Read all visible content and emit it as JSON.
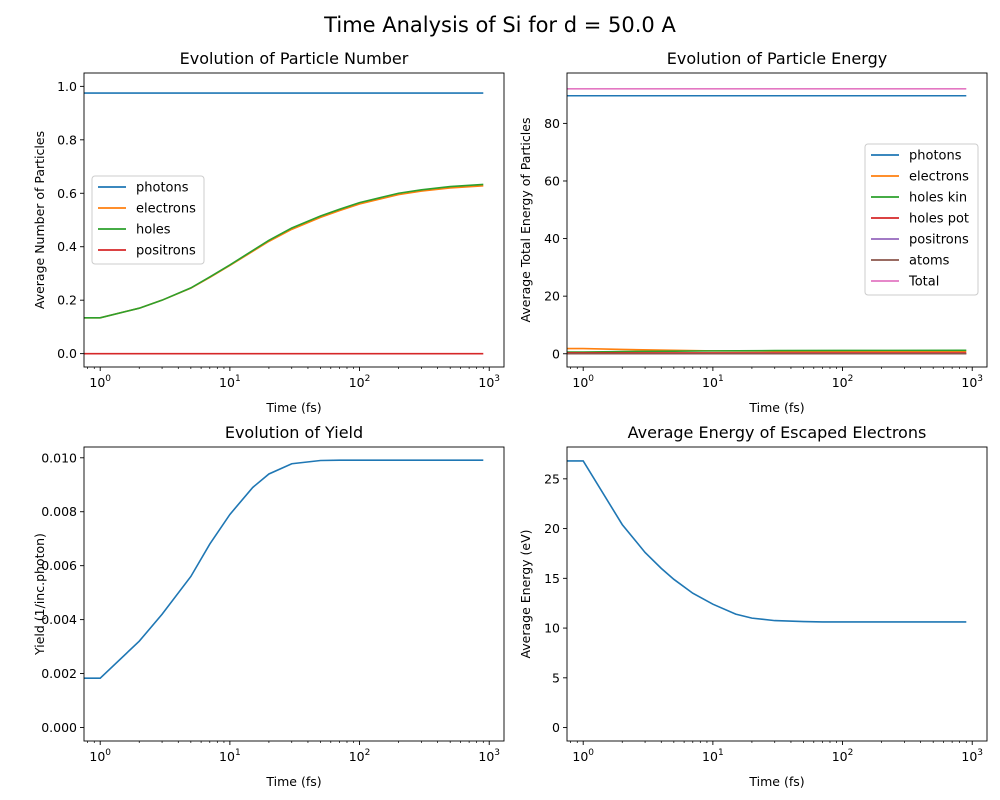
{
  "figure": {
    "title": "Time Analysis of Si for d = 50.0 A"
  },
  "colors": {
    "blue": "#1f77b4",
    "orange": "#ff7f0e",
    "green": "#2ca02c",
    "red": "#d62728",
    "purple": "#9467bd",
    "brown": "#8c564b",
    "pink": "#e377c2"
  },
  "chart_data": [
    {
      "type": "line",
      "title": "Evolution of Particle Number",
      "xlabel": "Time (fs)",
      "ylabel": "Average Number of Particles",
      "xscale": "log",
      "xlim": [
        0.75,
        1300
      ],
      "ylim": [
        -0.05,
        1.05
      ],
      "yticks": [
        0.0,
        0.2,
        0.4,
        0.6,
        0.8,
        1.0
      ],
      "ytick_labels": [
        "0.0",
        "0.2",
        "0.4",
        "0.6",
        "0.8",
        "1.0"
      ],
      "xticks": [
        1,
        10,
        100,
        1000
      ],
      "xtick_base": "10",
      "xtick_exponents": [
        "0",
        "1",
        "2",
        "3"
      ],
      "grid": false,
      "legend": {
        "position": "center-left"
      },
      "series": [
        {
          "name": "photons",
          "color": "#1f77b4",
          "x": [
            0.75,
            900
          ],
          "y": [
            0.975,
            0.975
          ]
        },
        {
          "name": "electrons",
          "color": "#ff7f0e",
          "x": [
            0.75,
            1,
            2,
            3,
            5,
            7,
            10,
            20,
            30,
            50,
            70,
            100,
            200,
            300,
            500,
            900
          ],
          "y": [
            0.134,
            0.134,
            0.17,
            0.2,
            0.245,
            0.285,
            0.33,
            0.42,
            0.465,
            0.51,
            0.535,
            0.56,
            0.595,
            0.608,
            0.62,
            0.628
          ]
        },
        {
          "name": "holes",
          "color": "#2ca02c",
          "x": [
            0.75,
            1,
            2,
            3,
            5,
            7,
            10,
            20,
            30,
            50,
            70,
            100,
            200,
            300,
            500,
            900
          ],
          "y": [
            0.134,
            0.134,
            0.17,
            0.2,
            0.246,
            0.287,
            0.332,
            0.424,
            0.47,
            0.515,
            0.54,
            0.565,
            0.6,
            0.613,
            0.625,
            0.633
          ]
        },
        {
          "name": "positrons",
          "color": "#d62728",
          "x": [
            0.75,
            900
          ],
          "y": [
            0.0,
            0.0
          ]
        }
      ]
    },
    {
      "type": "line",
      "title": "Evolution of Particle Energy",
      "xlabel": "Time (fs)",
      "ylabel": "Average Total Energy of Particles",
      "xscale": "log",
      "xlim": [
        0.75,
        1300
      ],
      "ylim": [
        -4.6,
        97.5
      ],
      "yticks": [
        0,
        20,
        40,
        60,
        80
      ],
      "ytick_labels": [
        "0",
        "20",
        "40",
        "60",
        "80"
      ],
      "xticks": [
        1,
        10,
        100,
        1000
      ],
      "xtick_base": "10",
      "xtick_exponents": [
        "0",
        "1",
        "2",
        "3"
      ],
      "grid": false,
      "legend": {
        "position": "center-right"
      },
      "series": [
        {
          "name": "photons",
          "color": "#1f77b4",
          "x": [
            0.75,
            900
          ],
          "y": [
            89.6,
            89.6
          ]
        },
        {
          "name": "electrons",
          "color": "#ff7f0e",
          "x": [
            0.75,
            1,
            2,
            5,
            10,
            30,
            100,
            900
          ],
          "y": [
            1.8,
            1.8,
            1.5,
            1.2,
            1.0,
            0.9,
            0.85,
            0.85
          ]
        },
        {
          "name": "holes kin",
          "color": "#2ca02c",
          "x": [
            0.75,
            1,
            2,
            5,
            10,
            30,
            100,
            900
          ],
          "y": [
            0.6,
            0.6,
            0.75,
            0.9,
            1.0,
            1.1,
            1.15,
            1.2
          ]
        },
        {
          "name": "holes pot",
          "color": "#d62728",
          "x": [
            0.75,
            900
          ],
          "y": [
            0.3,
            0.3
          ]
        },
        {
          "name": "positrons",
          "color": "#9467bd",
          "x": [
            0.75,
            900
          ],
          "y": [
            0.0,
            0.0
          ]
        },
        {
          "name": "atoms",
          "color": "#8c564b",
          "x": [
            0.75,
            900
          ],
          "y": [
            0.0,
            0.0
          ]
        },
        {
          "name": "Total",
          "color": "#e377c2",
          "x": [
            0.75,
            900
          ],
          "y": [
            92.0,
            92.0
          ]
        }
      ]
    },
    {
      "type": "line",
      "title": "Evolution of Yield",
      "xlabel": "Time (fs)",
      "ylabel": "Yield (1/inc.photon)",
      "xscale": "log",
      "xlim": [
        0.75,
        1300
      ],
      "ylim": [
        -0.0005,
        0.0104
      ],
      "yticks": [
        0.0,
        0.002,
        0.004,
        0.006,
        0.008,
        0.01
      ],
      "ytick_labels": [
        "0.000",
        "0.002",
        "0.004",
        "0.006",
        "0.008",
        "0.010"
      ],
      "xticks": [
        1,
        10,
        100,
        1000
      ],
      "xtick_base": "10",
      "xtick_exponents": [
        "0",
        "1",
        "2",
        "3"
      ],
      "grid": false,
      "series": [
        {
          "name": "",
          "color": "#1f77b4",
          "x": [
            0.75,
            1,
            2,
            3,
            5,
            7,
            10,
            15,
            20,
            30,
            50,
            70,
            100,
            900
          ],
          "y": [
            0.00183,
            0.00183,
            0.0032,
            0.0042,
            0.0056,
            0.0068,
            0.0079,
            0.0089,
            0.0094,
            0.00978,
            0.0099,
            0.00991,
            0.00991,
            0.00991
          ]
        }
      ]
    },
    {
      "type": "line",
      "title": "Average Energy of Escaped Electrons",
      "xlabel": "Time (fs)",
      "ylabel": "Average Energy (eV)",
      "xscale": "log",
      "xlim": [
        0.75,
        1300
      ],
      "ylim": [
        -1.35,
        28.2
      ],
      "yticks": [
        0,
        5,
        10,
        15,
        20,
        25
      ],
      "ytick_labels": [
        "0",
        "5",
        "10",
        "15",
        "20",
        "25"
      ],
      "xticks": [
        1,
        10,
        100,
        1000
      ],
      "xtick_base": "10",
      "xtick_exponents": [
        "0",
        "1",
        "2",
        "3"
      ],
      "grid": false,
      "series": [
        {
          "name": "",
          "color": "#1f77b4",
          "x": [
            0.75,
            1,
            2,
            3,
            4,
            5,
            7,
            10,
            15,
            20,
            30,
            50,
            70,
            100,
            900
          ],
          "y": [
            26.8,
            26.8,
            20.4,
            17.6,
            16.0,
            14.9,
            13.5,
            12.4,
            11.4,
            11.0,
            10.75,
            10.65,
            10.62,
            10.62,
            10.62
          ]
        }
      ]
    }
  ]
}
